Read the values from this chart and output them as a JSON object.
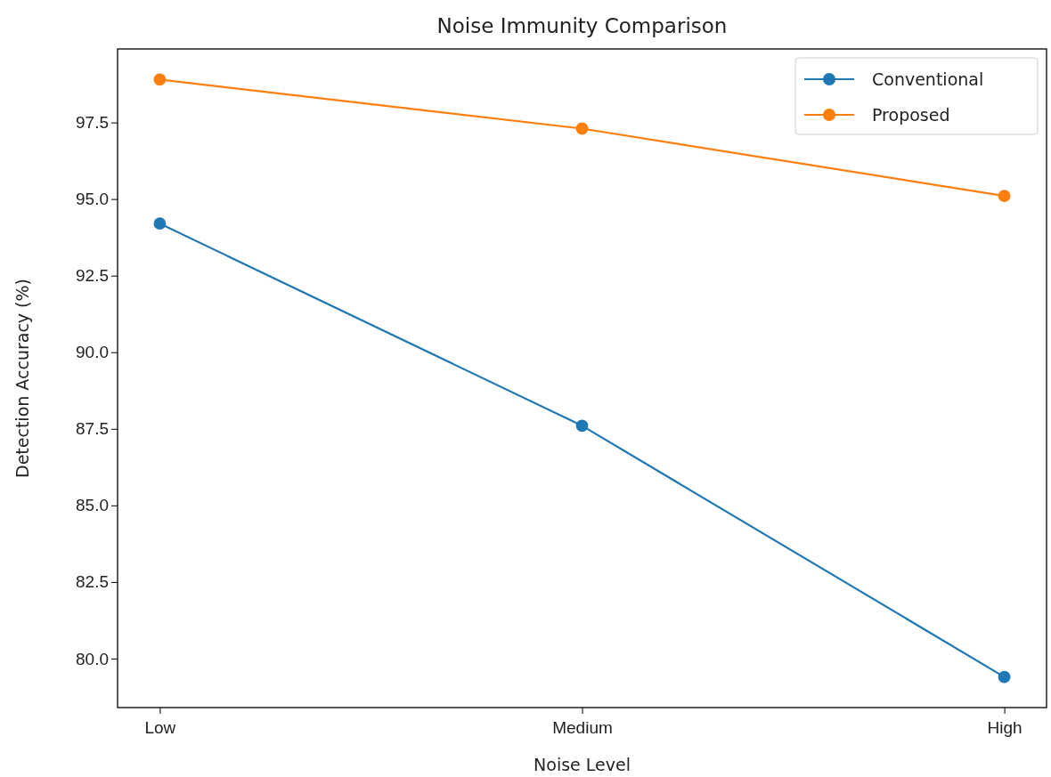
{
  "chart_data": {
    "type": "line",
    "title": "Noise Immunity Comparison",
    "xlabel": "Noise Level",
    "ylabel": "Detection Accuracy (%)",
    "categories": [
      "Low",
      "Medium",
      "High"
    ],
    "series": [
      {
        "name": "Conventional",
        "color": "#1f77b4",
        "values": [
          94.2,
          87.6,
          79.4
        ]
      },
      {
        "name": "Proposed",
        "color": "#ff7f0e",
        "values": [
          98.9,
          97.3,
          95.1
        ]
      }
    ],
    "ylim": [
      78.4,
      99.9
    ],
    "yticks": [
      {
        "value": 80,
        "label": "80.0"
      },
      {
        "value": 82.5,
        "label": "82.5"
      },
      {
        "value": 85,
        "label": "85.0"
      },
      {
        "value": 87.5,
        "label": "87.5"
      },
      {
        "value": 90,
        "label": "90.0"
      },
      {
        "value": 92.5,
        "label": "92.5"
      },
      {
        "value": 95,
        "label": "95.0"
      },
      {
        "value": 97.5,
        "label": "97.5"
      }
    ],
    "legend": "top right",
    "marker": "circle",
    "line_style": "solid",
    "grid": false
  }
}
